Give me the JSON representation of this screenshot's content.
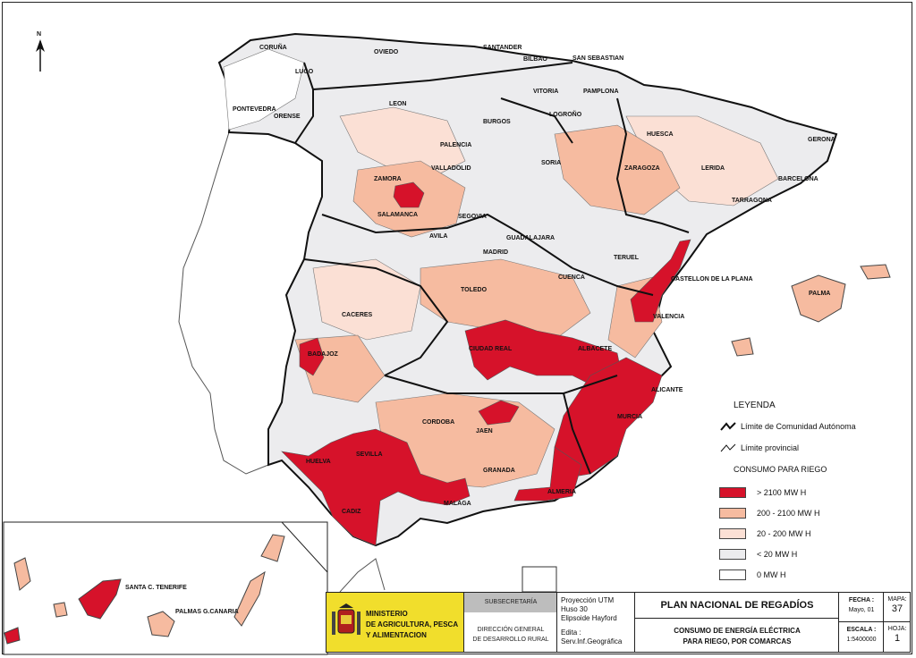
{
  "map": {
    "labels": {
      "coruna": "CORUÑA",
      "lugo": "LUGO",
      "oviedo": "OVIEDO",
      "santander": "SANTANDER",
      "bilbao": "BILBAO",
      "san_sebastian": "SAN SEBASTIAN",
      "vitoria": "VITORIA",
      "pamplona": "PAMPLONA",
      "pontevedra": "PONTEVEDRA",
      "orense": "ORENSE",
      "leon": "LEON",
      "burgos": "BURGOS",
      "logrono": "LOGROÑO",
      "huesca": "HUESCA",
      "gerona": "GERONA",
      "palencia": "PALENCIA",
      "valladolid": "VALLADOLID",
      "soria": "SORIA",
      "zaragoza": "ZARAGOZA",
      "lerida": "LERIDA",
      "barcelona": "BARCELONA",
      "zamora": "ZAMORA",
      "tarragona": "TARRAGONA",
      "salamanca": "SALAMANCA",
      "segovia": "SEGOVIA",
      "avila": "AVILA",
      "guadalajara": "GUADALAJARA",
      "madrid": "MADRID",
      "teruel": "TERUEL",
      "cuenca": "CUENCA",
      "castellon": "CASTELLON DE LA PLANA",
      "toledo": "TOLEDO",
      "palma": "PALMA",
      "caceres": "CACERES",
      "valencia": "VALENCIA",
      "ciudad_real": "CIUDAD REAL",
      "albacete": "ALBACETE",
      "badajoz": "BADAJOZ",
      "alicante": "ALICANTE",
      "murcia": "MURCIA",
      "cordoba": "CORDOBA",
      "jaen": "JAEN",
      "sevilla": "SEVILLA",
      "huelva": "HUELVA",
      "granada": "GRANADA",
      "almeria": "ALMERIA",
      "malaga": "MALAGA",
      "cadiz": "CADIZ",
      "santa_cruz": "SANTA C. TENERIFE",
      "las_palmas": "PALMAS G.CANARIA"
    },
    "north_arrow": "N"
  },
  "legend": {
    "title": "LEYENDA",
    "line_ccaa": "Límite de Comunidad Autónoma",
    "line_prov": "Límite provincial",
    "subtitle": "CONSUMO PARA RIEGO",
    "classes": [
      {
        "label": "> 2100 MW H",
        "color": "#d6122a"
      },
      {
        "label": "200 - 2100 MW H",
        "color": "#f6bba0"
      },
      {
        "label": "20 - 200 MW H",
        "color": "#fbe0d5"
      },
      {
        "label": "< 20 MW H",
        "color": "#ececee"
      },
      {
        "label": "0 MW H",
        "color": "#ffffff"
      }
    ]
  },
  "titleblock": {
    "ministry_line1": "MINISTERIO",
    "ministry_line2": "DE AGRICULTURA, PESCA",
    "ministry_line3": "Y ALIMENTACION",
    "subsecretaria": "SUBSECRETARÍA",
    "direccion_line1": "DIRECCIÓN GENERAL",
    "direccion_line2": "DE DESARROLLO RURAL",
    "proj_line1": "Proyección UTM",
    "proj_line2": "Huso 30",
    "proj_line3": "Elipsoide Hayford",
    "edita_label": "Edita :",
    "edita_value": "Serv.Inf.Geográfica",
    "plan_title": "PLAN NACIONAL DE REGADÍOS",
    "plan_sub1": "CONSUMO DE ENERGÍA ELÉCTRICA",
    "plan_sub2": "PARA RIEGO, POR COMARCAS",
    "fecha_label": "FECHA :",
    "fecha_value": "Mayo, 01",
    "escala_label": "ESCALA :",
    "escala_value": "1:5400000",
    "mapa_label": "MAPA:",
    "mapa_value": "37",
    "hoja_label": "HOJA:",
    "hoja_value": "1"
  }
}
